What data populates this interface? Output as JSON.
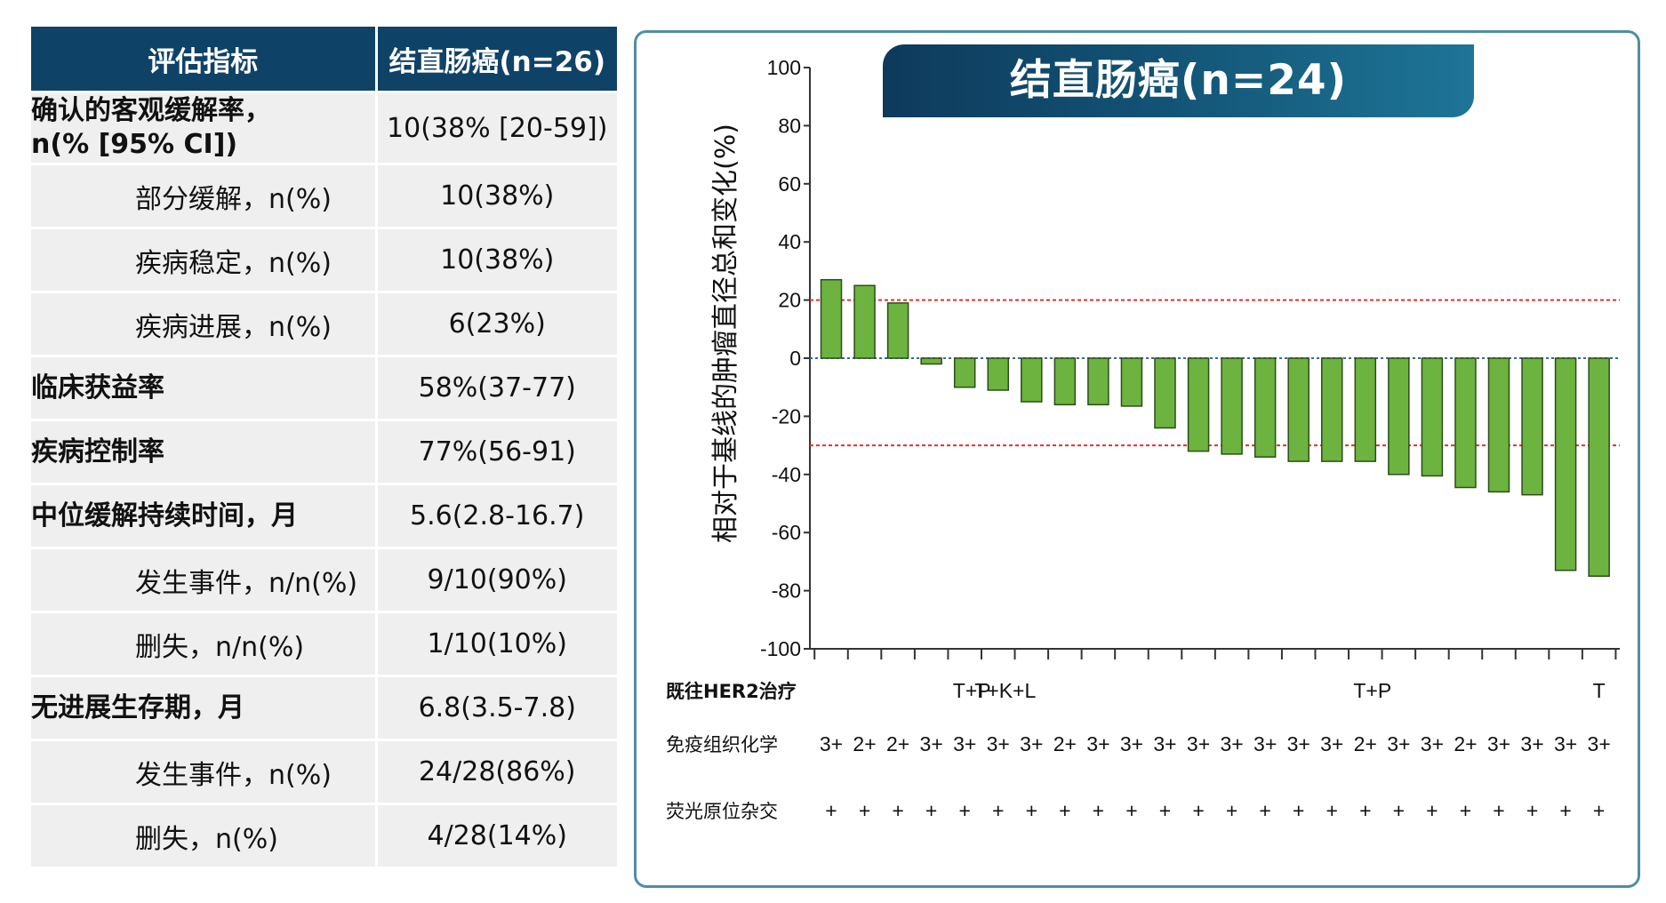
{
  "table": {
    "headers": [
      "评估指标",
      "结直肠癌(n=26)"
    ],
    "rows": [
      {
        "label": "确认的客观缓解率，\nn(% [95% CI])",
        "value": "10(38% [20-59])",
        "level": 0
      },
      {
        "label": "部分缓解，n(%)",
        "value": "10(38%)",
        "level": 1
      },
      {
        "label": "疾病稳定，n(%)",
        "value": "10(38%)",
        "level": 1
      },
      {
        "label": "疾病进展，n(%)",
        "value": "6(23%)",
        "level": 1
      },
      {
        "label": "临床获益率",
        "value": "58%(37-77)",
        "level": 0
      },
      {
        "label": "疾病控制率",
        "value": "77%(56-91)",
        "level": 0
      },
      {
        "label": "中位缓解持续时间，月",
        "value": "5.6(2.8-16.7)",
        "level": 0
      },
      {
        "label": "发生事件，n/n(%)",
        "value": "9/10(90%)",
        "level": 1
      },
      {
        "label": "删失，n/n(%)",
        "value": "1/10(10%)",
        "level": 1
      },
      {
        "label": "无进展生存期，月",
        "value": "6.8(3.5-7.8)",
        "level": 0
      },
      {
        "label": "发生事件，n(%)",
        "value": "24/28(86%)",
        "level": 1
      },
      {
        "label": "删失，n(%)",
        "value": "4/28(14%)",
        "level": 1
      }
    ]
  },
  "colors": {
    "header_bg": "#0f4267",
    "row_bg": "#efefef",
    "bar_fill": "#6cb33f",
    "threshold_line": "#e0322c",
    "zero_line": "#2f6f8f",
    "panel_border": "#4e8ea5"
  },
  "chart_data": {
    "type": "bar",
    "title": "结直肠癌(n=24)",
    "xlabel": "",
    "ylabel": "相对于基线的肿瘤直径总和变化(%)",
    "ylim": [
      -100,
      100
    ],
    "yticks": [
      100,
      80,
      60,
      40,
      20,
      0,
      -20,
      -40,
      -60,
      -80,
      -100
    ],
    "reference_lines": [
      20,
      0,
      -30
    ],
    "values": [
      27,
      25,
      19,
      -2,
      -10,
      -11,
      -15,
      -16,
      -16,
      -16.5,
      -24,
      -32,
      -33,
      -34,
      -35.5,
      -35.5,
      -35.5,
      -40,
      -40.5,
      -44.5,
      -46,
      -47,
      -73,
      -75
    ],
    "annotation_rows": [
      {
        "label": "既往HER2治疗",
        "bold": true,
        "cells": [
          "",
          "",
          "",
          "",
          "T+P",
          "T+K+L",
          "",
          "",
          "",
          "",
          "",
          "",
          "",
          "",
          "",
          "",
          "T+P",
          "",
          "",
          "",
          "",
          "",
          "",
          "T"
        ]
      },
      {
        "label": "免疫组织化学",
        "bold": false,
        "cells": [
          "3+",
          "2+",
          "2+",
          "3+",
          "3+",
          "3+",
          "3+",
          "2+",
          "3+",
          "3+",
          "3+",
          "3+",
          "3+",
          "3+",
          "3+",
          "3+",
          "2+",
          "3+",
          "3+",
          "2+",
          "3+",
          "3+",
          "3+",
          "3+"
        ]
      },
      {
        "label": "荧光原位杂交",
        "bold": false,
        "cells": [
          "+",
          "+",
          "+",
          "+",
          "+",
          "+",
          "+",
          "+",
          "+",
          "+",
          "+",
          "+",
          "+",
          "+",
          "+",
          "+",
          "+",
          "+",
          "+",
          "+",
          "+",
          "+",
          "+",
          "+"
        ]
      }
    ]
  }
}
